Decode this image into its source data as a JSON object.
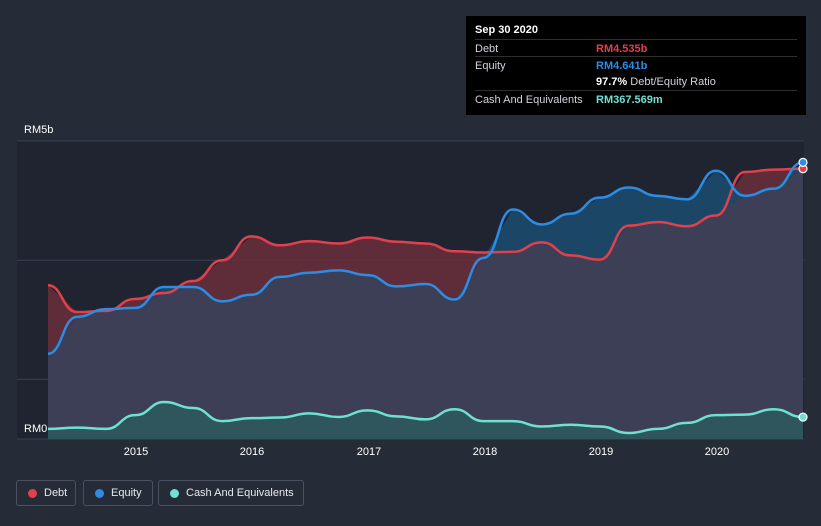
{
  "chart_data": {
    "type": "area",
    "title": "",
    "xlabel": "",
    "ylabel": "",
    "currency": "RM",
    "y_axis_labels": {
      "top": "RM5b",
      "bottom": "RM0"
    },
    "ylim": [
      0,
      5.0
    ],
    "xlim": [
      2014.25,
      2020.75
    ],
    "x_ticks": [
      2015,
      2016,
      2017,
      2018,
      2019,
      2020
    ],
    "x_tick_labels": [
      "2015",
      "2016",
      "2017",
      "2018",
      "2019",
      "2020"
    ],
    "series": [
      {
        "name": "Debt",
        "color": "#e0414d",
        "x": [
          2014.25,
          2014.5,
          2014.75,
          2015.0,
          2015.25,
          2015.5,
          2015.75,
          2016.0,
          2016.25,
          2016.5,
          2016.75,
          2017.0,
          2017.25,
          2017.5,
          2017.75,
          2018.0,
          2018.25,
          2018.5,
          2018.75,
          2019.0,
          2019.25,
          2019.5,
          2019.75,
          2020.0,
          2020.25,
          2020.5,
          2020.75
        ],
        "values": [
          2.58,
          2.13,
          2.15,
          2.35,
          2.45,
          2.65,
          3.0,
          3.4,
          3.25,
          3.32,
          3.28,
          3.38,
          3.31,
          3.28,
          3.15,
          3.13,
          3.14,
          3.3,
          3.08,
          3.01,
          3.58,
          3.64,
          3.57,
          3.75,
          4.48,
          4.52,
          4.535
        ]
      },
      {
        "name": "Equity",
        "color": "#2d8ce4",
        "x": [
          2014.25,
          2014.5,
          2014.75,
          2015.0,
          2015.25,
          2015.5,
          2015.75,
          2016.0,
          2016.25,
          2016.5,
          2016.75,
          2017.0,
          2017.25,
          2017.5,
          2017.75,
          2018.0,
          2018.25,
          2018.5,
          2018.75,
          2019.0,
          2019.25,
          2019.5,
          2019.75,
          2020.0,
          2020.25,
          2020.5,
          2020.75
        ],
        "values": [
          1.43,
          2.05,
          2.18,
          2.2,
          2.55,
          2.55,
          2.31,
          2.42,
          2.72,
          2.79,
          2.83,
          2.75,
          2.56,
          2.6,
          2.34,
          3.04,
          3.85,
          3.6,
          3.78,
          4.05,
          4.22,
          4.08,
          4.02,
          4.5,
          4.08,
          4.2,
          4.641
        ]
      },
      {
        "name": "Cash And Equivalents",
        "color": "#6fe0d2",
        "x": [
          2014.25,
          2014.5,
          2014.75,
          2015.0,
          2015.25,
          2015.5,
          2015.75,
          2016.0,
          2016.25,
          2016.5,
          2016.75,
          2017.0,
          2017.25,
          2017.5,
          2017.75,
          2018.0,
          2018.25,
          2018.5,
          2018.75,
          2019.0,
          2019.25,
          2019.5,
          2019.75,
          2020.0,
          2020.25,
          2020.5,
          2020.75
        ],
        "values": [
          0.17,
          0.19,
          0.17,
          0.4,
          0.62,
          0.52,
          0.3,
          0.35,
          0.36,
          0.43,
          0.37,
          0.48,
          0.38,
          0.33,
          0.5,
          0.3,
          0.3,
          0.21,
          0.24,
          0.21,
          0.1,
          0.17,
          0.27,
          0.4,
          0.41,
          0.5,
          0.368
        ]
      }
    ],
    "legend": [
      "Debt",
      "Equity",
      "Cash And Equivalents"
    ],
    "legend_position": "bottom-left"
  },
  "tooltip": {
    "date": "Sep 30 2020",
    "debt_label": "Debt",
    "debt_value": "RM4.535b",
    "equity_label": "Equity",
    "equity_value": "RM4.641b",
    "ratio_value": "97.7%",
    "ratio_label": "Debt/Equity Ratio",
    "cash_label": "Cash And Equivalents",
    "cash_value": "RM367.569m"
  },
  "colors": {
    "background": "#262b38",
    "debt": "#e0414d",
    "equity": "#2d8ce4",
    "cash": "#6fe0d2"
  }
}
